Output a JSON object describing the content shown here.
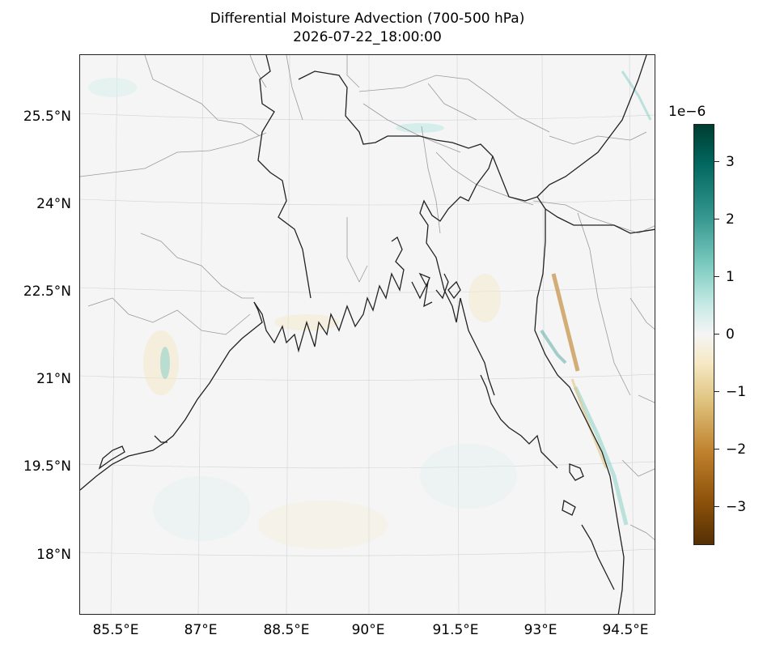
{
  "title": {
    "line1": "Differential Moisture Advection (700-500 hPa)",
    "line2": "2026-07-22_18:00:00"
  },
  "axes": {
    "lat_ticks": [
      "25.5°N",
      "24°N",
      "22.5°N",
      "21°N",
      "19.5°N",
      "18°N"
    ],
    "lon_ticks": [
      "85.5°E",
      "87°E",
      "88.5°E",
      "90°E",
      "91.5°E",
      "93°E",
      "94.5°E"
    ]
  },
  "colorbar": {
    "exponent_label": "1e−6",
    "tick_labels": [
      "3",
      "2",
      "1",
      "0",
      "−1",
      "−2",
      "−3"
    ],
    "range": [
      -3.7,
      3.7
    ],
    "colormap": "BrBG"
  },
  "map": {
    "extent_lon": [
      84.8,
      94.9
    ],
    "extent_lat": [
      16.8,
      26.4
    ],
    "projection": "lambert-conformal",
    "features": [
      "coastline",
      "country-borders",
      "state-borders",
      "gridlines"
    ]
  }
}
